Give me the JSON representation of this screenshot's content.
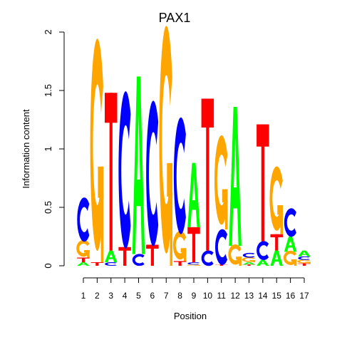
{
  "chart_data": {
    "type": "sequence-logo",
    "title": "PAX1",
    "xlabel": "Position",
    "ylabel": "Information content",
    "ylim": [
      0,
      2
    ],
    "yticks": [
      "0",
      "0.5",
      "1",
      "1.5",
      "2"
    ],
    "positions": [
      "1",
      "2",
      "3",
      "4",
      "5",
      "6",
      "7",
      "8",
      "9",
      "10",
      "11",
      "12",
      "13",
      "14",
      "15",
      "16",
      "17"
    ],
    "colors": {
      "A": "#00ff00",
      "C": "#0000ff",
      "G": "#ffa500",
      "T": "#ff0000"
    },
    "columns": [
      {
        "position": "1",
        "letters": [
          {
            "base": "A",
            "height": 0.03
          },
          {
            "base": "T",
            "height": 0.04
          },
          {
            "base": "G",
            "height": 0.14
          },
          {
            "base": "C",
            "height": 0.37
          }
        ]
      },
      {
        "position": "2",
        "letters": [
          {
            "base": "T",
            "height": 0.03
          },
          {
            "base": "G",
            "height": 1.78
          }
        ]
      },
      {
        "position": "3",
        "letters": [
          {
            "base": "C",
            "height": 0.03
          },
          {
            "base": "A",
            "height": 0.1
          },
          {
            "base": "T",
            "height": 1.35
          }
        ]
      },
      {
        "position": "4",
        "letters": [
          {
            "base": "T",
            "height": 0.16
          },
          {
            "base": "C",
            "height": 1.32
          }
        ]
      },
      {
        "position": "5",
        "letters": [
          {
            "base": "C",
            "height": 0.1
          },
          {
            "base": "A",
            "height": 1.52
          }
        ]
      },
      {
        "position": "6",
        "letters": [
          {
            "base": "T",
            "height": 0.18
          },
          {
            "base": "C",
            "height": 1.22
          }
        ]
      },
      {
        "position": "7",
        "letters": [
          {
            "base": "G",
            "height": 1.91
          }
        ]
      },
      {
        "position": "8",
        "letters": [
          {
            "base": "T",
            "height": 0.04
          },
          {
            "base": "G",
            "height": 0.24
          },
          {
            "base": "C",
            "height": 0.98
          }
        ]
      },
      {
        "position": "9",
        "letters": [
          {
            "base": "G",
            "height": 0.01
          },
          {
            "base": "C",
            "height": 0.02
          },
          {
            "base": "T",
            "height": 0.3
          },
          {
            "base": "A",
            "height": 0.55
          }
        ]
      },
      {
        "position": "10",
        "letters": [
          {
            "base": "C",
            "height": 0.13
          },
          {
            "base": "T",
            "height": 1.3
          }
        ]
      },
      {
        "position": "11",
        "letters": [
          {
            "base": "T",
            "height": 0.01
          },
          {
            "base": "C",
            "height": 0.3
          },
          {
            "base": "G",
            "height": 0.75
          }
        ]
      },
      {
        "position": "12",
        "letters": [
          {
            "base": "G",
            "height": 0.17
          },
          {
            "base": "A",
            "height": 1.19
          }
        ]
      },
      {
        "position": "13",
        "letters": [
          {
            "base": "T",
            "height": 0.01
          },
          {
            "base": "A",
            "height": 0.02
          },
          {
            "base": "G",
            "height": 0.04
          },
          {
            "base": "C",
            "height": 0.04
          }
        ]
      },
      {
        "position": "14",
        "letters": [
          {
            "base": "A",
            "height": 0.05
          },
          {
            "base": "C",
            "height": 0.16
          },
          {
            "base": "T",
            "height": 1.0
          }
        ]
      },
      {
        "position": "15",
        "letters": [
          {
            "base": "A",
            "height": 0.13
          },
          {
            "base": "T",
            "height": 0.14
          },
          {
            "base": "G",
            "height": 0.54
          }
        ]
      },
      {
        "position": "16",
        "letters": [
          {
            "base": "G",
            "height": 0.12
          },
          {
            "base": "A",
            "height": 0.13
          },
          {
            "base": "C",
            "height": 0.24
          }
        ]
      },
      {
        "position": "17",
        "letters": [
          {
            "base": "T",
            "height": 0.02
          },
          {
            "base": "G",
            "height": 0.03
          },
          {
            "base": "C",
            "height": 0.03
          },
          {
            "base": "A",
            "height": 0.05
          }
        ]
      }
    ]
  }
}
